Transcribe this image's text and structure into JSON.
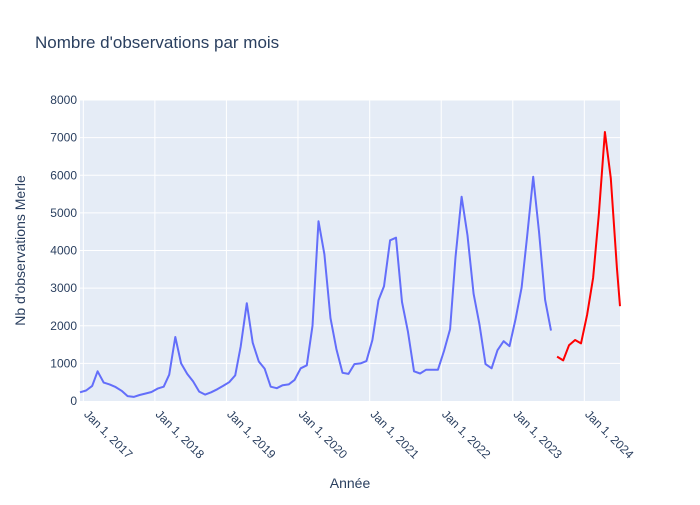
{
  "chart_data": {
    "type": "line",
    "title": "Nombre d'observations par mois",
    "xlabel": "Année",
    "ylabel": "Nb d'observations Merle",
    "ylim": [
      0,
      8000
    ],
    "y_ticks": [
      0,
      1000,
      2000,
      3000,
      4000,
      5000,
      6000,
      7000,
      8000
    ],
    "y_tick_labels": [
      "0",
      "1000",
      "2000",
      "3000",
      "4000",
      "5000",
      "6000",
      "7000",
      "8000"
    ],
    "x_range": [
      "2016-12-15",
      "2024-07-01"
    ],
    "x_ticks": [
      "2017-01-01",
      "2018-01-01",
      "2019-01-01",
      "2020-01-01",
      "2021-01-01",
      "2022-01-01",
      "2023-01-01",
      "2024-01-01"
    ],
    "x_tick_labels": [
      "Jan 1, 2017",
      "Jan 1, 2018",
      "Jan 1, 2019",
      "Jan 1, 2020",
      "Jan 1, 2021",
      "Jan 1, 2022",
      "Jan 1, 2023",
      "Jan 1, 2024"
    ],
    "grid": true,
    "legend": "none",
    "colors": {
      "plot_bg": "#e5ecf6",
      "grid": "#ffffff",
      "text": "#2a3f5f"
    },
    "series": [
      {
        "color": "#636efa",
        "points": [
          [
            "2016-12-15",
            230
          ],
          [
            "2017-01-15",
            280
          ],
          [
            "2017-02-15",
            400
          ],
          [
            "2017-03-15",
            790
          ],
          [
            "2017-04-15",
            490
          ],
          [
            "2017-05-15",
            440
          ],
          [
            "2017-06-15",
            370
          ],
          [
            "2017-07-15",
            270
          ],
          [
            "2017-08-15",
            130
          ],
          [
            "2017-09-15",
            110
          ],
          [
            "2017-10-15",
            160
          ],
          [
            "2017-11-15",
            200
          ],
          [
            "2017-12-15",
            240
          ],
          [
            "2018-01-15",
            330
          ],
          [
            "2018-02-15",
            380
          ],
          [
            "2018-03-15",
            700
          ],
          [
            "2018-04-15",
            1700
          ],
          [
            "2018-05-15",
            1000
          ],
          [
            "2018-06-15",
            720
          ],
          [
            "2018-07-15",
            520
          ],
          [
            "2018-08-15",
            250
          ],
          [
            "2018-09-15",
            170
          ],
          [
            "2018-10-15",
            230
          ],
          [
            "2018-11-15",
            310
          ],
          [
            "2018-12-15",
            400
          ],
          [
            "2019-01-15",
            500
          ],
          [
            "2019-02-15",
            680
          ],
          [
            "2019-03-15",
            1450
          ],
          [
            "2019-04-15",
            2600
          ],
          [
            "2019-05-15",
            1550
          ],
          [
            "2019-06-15",
            1050
          ],
          [
            "2019-07-15",
            860
          ],
          [
            "2019-08-15",
            380
          ],
          [
            "2019-09-15",
            340
          ],
          [
            "2019-10-15",
            420
          ],
          [
            "2019-11-15",
            440
          ],
          [
            "2019-12-15",
            560
          ],
          [
            "2020-01-15",
            870
          ],
          [
            "2020-02-15",
            950
          ],
          [
            "2020-03-15",
            2000
          ],
          [
            "2020-04-15",
            4780
          ],
          [
            "2020-05-15",
            3900
          ],
          [
            "2020-06-15",
            2200
          ],
          [
            "2020-07-15",
            1380
          ],
          [
            "2020-08-15",
            750
          ],
          [
            "2020-09-15",
            720
          ],
          [
            "2020-10-15",
            980
          ],
          [
            "2020-11-15",
            1000
          ],
          [
            "2020-12-15",
            1060
          ],
          [
            "2021-01-15",
            1620
          ],
          [
            "2021-02-15",
            2680
          ],
          [
            "2021-03-15",
            3050
          ],
          [
            "2021-04-15",
            4270
          ],
          [
            "2021-05-15",
            4340
          ],
          [
            "2021-06-15",
            2630
          ],
          [
            "2021-07-15",
            1850
          ],
          [
            "2021-08-15",
            790
          ],
          [
            "2021-09-15",
            730
          ],
          [
            "2021-10-15",
            830
          ],
          [
            "2021-11-15",
            830
          ],
          [
            "2021-12-15",
            830
          ],
          [
            "2022-01-15",
            1330
          ],
          [
            "2022-02-15",
            1910
          ],
          [
            "2022-03-15",
            3820
          ],
          [
            "2022-04-15",
            5430
          ],
          [
            "2022-05-15",
            4400
          ],
          [
            "2022-06-15",
            2850
          ],
          [
            "2022-07-15",
            2030
          ],
          [
            "2022-08-15",
            980
          ],
          [
            "2022-09-15",
            870
          ],
          [
            "2022-10-15",
            1350
          ],
          [
            "2022-11-15",
            1590
          ],
          [
            "2022-12-15",
            1460
          ],
          [
            "2023-01-15",
            2170
          ],
          [
            "2023-02-15",
            3010
          ],
          [
            "2023-03-15",
            4370
          ],
          [
            "2023-04-15",
            5960
          ],
          [
            "2023-05-15",
            4500
          ],
          [
            "2023-06-15",
            2690
          ],
          [
            "2023-07-15",
            1870
          ]
        ]
      },
      {
        "color": "#ff0000",
        "points": [
          [
            "2023-08-15",
            1180
          ],
          [
            "2023-09-15",
            1080
          ],
          [
            "2023-10-15",
            1480
          ],
          [
            "2023-11-15",
            1620
          ],
          [
            "2023-12-15",
            1530
          ],
          [
            "2024-01-15",
            2290
          ],
          [
            "2024-02-15",
            3270
          ],
          [
            "2024-03-15",
            4950
          ],
          [
            "2024-04-15",
            7150
          ],
          [
            "2024-05-15",
            5920
          ],
          [
            "2024-06-15",
            3540
          ],
          [
            "2024-07-01",
            2520
          ]
        ]
      }
    ]
  }
}
